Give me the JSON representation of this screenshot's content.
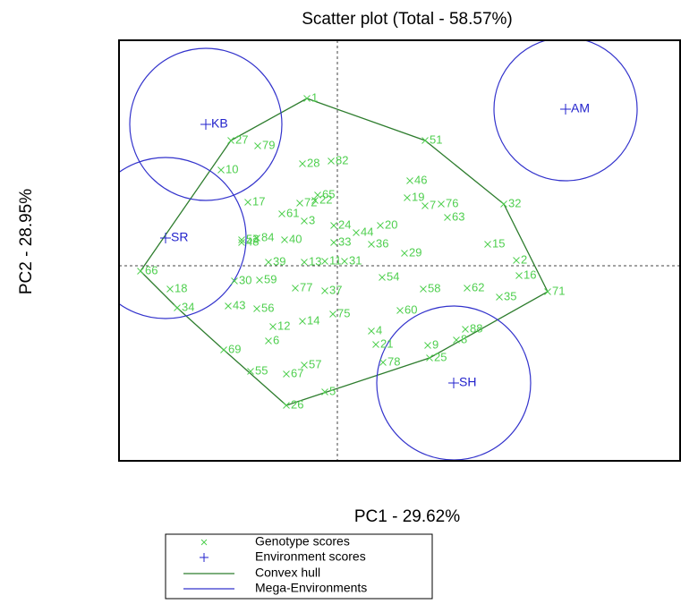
{
  "chart_data": {
    "type": "scatter",
    "title": "Scatter plot (Total - 58.57%)",
    "x_label": "PC1 - 29.62%",
    "y_label": "PC2 - 28.95%",
    "xlim": [
      -2.44,
      3.83
    ],
    "ylim": [
      -2.18,
      2.52
    ],
    "series": [
      {
        "name": "Genotype scores",
        "color": "#4fcf4f",
        "labels": [
          "1",
          "27",
          "79",
          "10",
          "28",
          "82",
          "51",
          "46",
          "17",
          "72",
          "22",
          "65",
          "19",
          "7",
          "76",
          "32",
          "61",
          "63",
          "3",
          "24",
          "44",
          "20",
          "53",
          "84",
          "40",
          "33",
          "36",
          "29",
          "15",
          "48",
          "66",
          "18",
          "30",
          "59",
          "77",
          "37",
          "54",
          "58",
          "62",
          "35",
          "16",
          "71",
          "34",
          "43",
          "56",
          "12",
          "14",
          "75",
          "60",
          "6",
          "4",
          "21",
          "88",
          "8",
          "9",
          "25",
          "78",
          "69",
          "55",
          "57",
          "67",
          "5",
          "26",
          "13",
          "11",
          "31",
          "39",
          "2"
        ],
        "x": [
          -0.34,
          -1.19,
          -0.89,
          -1.3,
          -0.39,
          -0.07,
          0.98,
          0.81,
          -1.0,
          -0.42,
          -0.25,
          -0.22,
          0.78,
          0.98,
          1.16,
          1.86,
          -0.62,
          1.23,
          -0.37,
          -0.04,
          0.21,
          0.48,
          -1.07,
          -0.9,
          -0.59,
          -0.04,
          0.38,
          0.75,
          1.68,
          -1.07,
          -2.2,
          -1.87,
          -1.15,
          -0.87,
          -0.47,
          -0.14,
          0.5,
          0.96,
          1.45,
          1.81,
          2.03,
          2.35,
          -1.79,
          -1.22,
          -0.9,
          -0.72,
          -0.39,
          -0.05,
          0.7,
          -0.77,
          0.38,
          0.43,
          1.43,
          1.33,
          1.01,
          1.03,
          0.51,
          -1.27,
          -0.97,
          -0.37,
          -0.57,
          -0.14,
          -0.57,
          -0.37,
          -0.14,
          0.08,
          -0.77,
          2.0
        ],
        "y": [
          1.87,
          1.4,
          1.34,
          1.07,
          1.14,
          1.17,
          1.4,
          0.95,
          0.71,
          0.7,
          0.73,
          0.79,
          0.76,
          0.67,
          0.69,
          0.69,
          0.58,
          0.54,
          0.5,
          0.45,
          0.37,
          0.45,
          0.29,
          0.31,
          0.29,
          0.26,
          0.24,
          0.14,
          0.24,
          0.26,
          -0.06,
          -0.26,
          -0.17,
          -0.16,
          -0.25,
          -0.28,
          -0.13,
          -0.26,
          -0.25,
          -0.35,
          -0.11,
          -0.29,
          -0.47,
          -0.45,
          -0.48,
          -0.68,
          -0.62,
          -0.54,
          -0.5,
          -0.84,
          -0.73,
          -0.88,
          -0.71,
          -0.83,
          -0.89,
          -1.03,
          -1.08,
          -0.94,
          -1.18,
          -1.11,
          -1.21,
          -1.41,
          -1.56,
          0.04,
          0.05,
          0.05,
          0.04,
          0.06
        ]
      },
      {
        "name": "Environment scores",
        "color": "#2222cc",
        "labels": [
          "KB",
          "SR",
          "AM",
          "SH"
        ],
        "x": [
          -1.47,
          -1.92,
          2.55,
          1.3
        ],
        "y": [
          1.58,
          0.31,
          1.75,
          -1.31
        ]
      }
    ],
    "convex_hull": {
      "name": "Convex hull",
      "color": "#2e7d2e"
    },
    "mega_environments": {
      "name": "Mega-Environments",
      "color": "#3333cc",
      "r": [
        0.85,
        0.9,
        0.8,
        0.86
      ]
    }
  }
}
